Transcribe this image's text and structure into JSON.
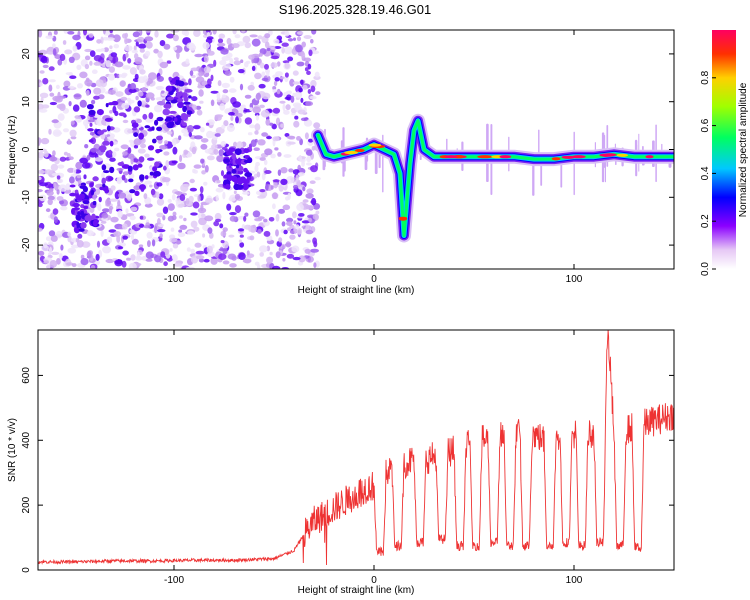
{
  "title": "S196.2025.328.19.46.G01",
  "colors": {
    "snr_line": "#ee3333",
    "axis": "#000000"
  },
  "chart_data": [
    {
      "type": "heatmap",
      "title": "S196.2025.328.19.46.G01",
      "xlabel": "Height of straight line (km)",
      "ylabel": "Frequency (Hz)",
      "xlim": [
        -168,
        150
      ],
      "ylim": [
        -25,
        25
      ],
      "xticks": [
        -100,
        0,
        100
      ],
      "xtick_labels": [
        "-100",
        "0",
        "100"
      ],
      "yticks": [
        -20,
        -10,
        0,
        10,
        20
      ],
      "ytick_labels": [
        "-20",
        "-10",
        "0",
        "10",
        "20"
      ],
      "noise_region": {
        "x_from": -168,
        "x_to": -28
      },
      "signal_trace": {
        "x": [
          -28,
          -26,
          -24,
          -20,
          -15,
          -10,
          -5,
          0,
          5,
          10,
          13,
          15,
          18,
          20,
          22,
          25,
          30,
          40,
          50,
          60,
          70,
          80,
          90,
          100,
          110,
          120,
          130,
          140,
          150
        ],
        "y": [
          3,
          1,
          -1,
          -1.5,
          -1,
          -0.5,
          0,
          1,
          0,
          -1,
          -5,
          -18,
          -3,
          4,
          6,
          0,
          -1.5,
          -1.5,
          -1.5,
          -1.5,
          -1.5,
          -2,
          -2,
          -1.5,
          -1.5,
          -1,
          -1.5,
          -1.5,
          -1.5
        ]
      },
      "colorbar_label": "Normalized spectral amplitude",
      "colorbar_range": [
        0,
        1
      ],
      "colorbar_ticks": [
        0.0,
        0.2,
        0.4,
        0.6,
        0.8
      ],
      "colorbar_tick_labels": [
        "0.0",
        "0.2",
        "0.4",
        "0.6",
        "0.8"
      ]
    },
    {
      "type": "line",
      "title": "",
      "xlabel": "Height of straight line (km)",
      "ylabel": "SNR (10 * v/v)",
      "xlim": [
        -168,
        150
      ],
      "ylim": [
        0,
        740
      ],
      "xticks": [
        -100,
        0,
        100
      ],
      "xtick_labels": [
        "-100",
        "0",
        "100"
      ],
      "yticks": [
        0,
        200,
        400,
        600
      ],
      "ytick_labels": [
        "0",
        "200",
        "400",
        "600"
      ],
      "series": [
        {
          "name": "SNR",
          "x": [
            -168,
            -150,
            -130,
            -110,
            -90,
            -70,
            -50,
            -40,
            -35,
            -30,
            -25,
            -20,
            -15,
            -10,
            -5,
            0,
            5,
            10,
            15,
            20,
            25,
            30,
            35,
            40,
            45,
            50,
            55,
            60,
            65,
            70,
            75,
            80,
            85,
            90,
            95,
            100,
            105,
            110,
            115,
            117,
            120,
            125,
            130,
            135,
            140,
            145,
            150
          ],
          "values": [
            25,
            25,
            28,
            28,
            30,
            30,
            35,
            60,
            110,
            150,
            170,
            190,
            210,
            230,
            250,
            260,
            290,
            320,
            330,
            340,
            340,
            350,
            360,
            370,
            380,
            390,
            400,
            410,
            410,
            420,
            420,
            420,
            400,
            410,
            420,
            420,
            420,
            425,
            430,
            740,
            420,
            430,
            440,
            450,
            460,
            470,
            480
          ]
        }
      ],
      "dropouts": [
        {
          "x": 3,
          "min": 40
        },
        {
          "x": 12,
          "min": 60
        },
        {
          "x": 23,
          "min": 70
        },
        {
          "x": 34,
          "min": 80
        },
        {
          "x": 43,
          "min": 60
        },
        {
          "x": 51,
          "min": 60
        },
        {
          "x": 60,
          "min": 70
        },
        {
          "x": 68,
          "min": 60
        },
        {
          "x": 76,
          "min": 60
        },
        {
          "x": 88,
          "min": 60
        },
        {
          "x": 96,
          "min": 70
        },
        {
          "x": 104,
          "min": 60
        },
        {
          "x": 113,
          "min": 70
        },
        {
          "x": 123,
          "min": 60
        },
        {
          "x": 132,
          "min": 55
        }
      ]
    }
  ]
}
